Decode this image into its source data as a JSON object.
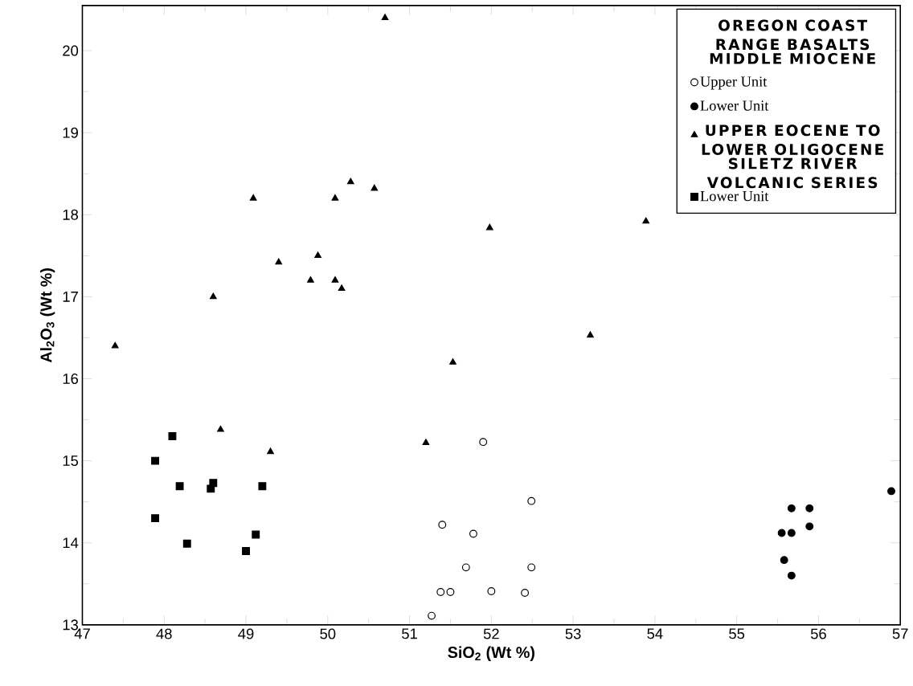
{
  "chart_data": {
    "type": "scatter",
    "xlabel": "SiO$_{2}$ (Wt %)",
    "ylabel": "Al$_{2}$O$_{3}$ (Wt %)",
    "legend_title": "OREGON COAST RANGE BASALTS",
    "legend": "top right",
    "annotations": [
      "MIDDLE MIOCENE",
      "SILETZ RIVER VOLCANIC SERIES"
    ],
    "xlim": [
      47,
      57
    ],
    "ylim": [
      13,
      20.55
    ],
    "xticks": [
      47,
      48,
      49,
      50,
      51,
      52,
      53,
      54,
      55,
      56,
      57
    ],
    "yticks": [
      13,
      14,
      15,
      16,
      17,
      18,
      19,
      20
    ],
    "series": [
      {
        "name": "Upper Unit",
        "color": "#ffffff",
        "marker": "circle",
        "x": [
          51.9,
          52.49,
          51.4,
          51.78,
          51.69,
          52.49,
          51.38,
          51.5,
          52.0,
          52.41,
          51.27
        ],
        "values": [
          15.23,
          14.51,
          14.22,
          14.11,
          13.7,
          13.7,
          13.4,
          13.4,
          13.41,
          13.39,
          13.11
        ]
      },
      {
        "name": "Lower Unit",
        "color": "#000000",
        "marker": "circle",
        "x": [
          56.89,
          55.67,
          55.89,
          55.89,
          55.55,
          55.67,
          55.58,
          55.67
        ],
        "values": [
          14.63,
          14.42,
          14.42,
          14.2,
          14.12,
          14.12,
          13.79,
          13.6
        ]
      },
      {
        "name": "UPPER EOCENE TO LOWER OLIGOCENE",
        "color": "#000000",
        "marker": "triangle",
        "x": [
          50.7,
          49.09,
          50.09,
          50.28,
          50.57,
          49.4,
          49.88,
          49.79,
          50.09,
          50.17,
          48.6,
          47.4,
          48.69,
          49.3,
          51.2,
          51.53,
          53.21,
          51.98,
          53.89
        ],
        "values": [
          20.4,
          18.2,
          18.2,
          18.4,
          18.32,
          17.42,
          17.5,
          17.2,
          17.2,
          17.1,
          17.0,
          16.4,
          15.38,
          15.11,
          15.22,
          16.2,
          16.53,
          17.84,
          17.92
        ]
      },
      {
        "name": "Lower Unit",
        "color": "#000000",
        "marker": "square",
        "x": [
          48.1,
          47.89,
          48.19,
          48.6,
          48.57,
          49.2,
          47.89,
          48.28,
          49.0,
          49.12
        ],
        "values": [
          15.3,
          15.0,
          14.69,
          14.73,
          14.66,
          14.69,
          14.3,
          13.99,
          13.9,
          14.1
        ]
      }
    ]
  }
}
